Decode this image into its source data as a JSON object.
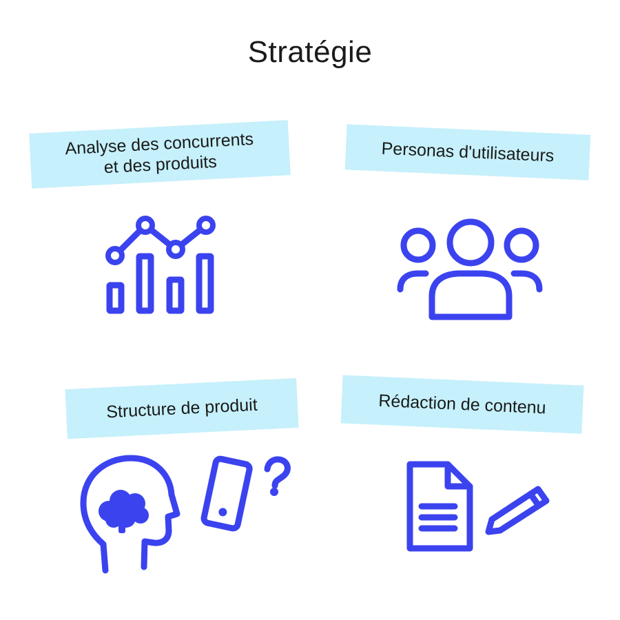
{
  "title": "Stratégie",
  "cards": [
    {
      "label": "Analyse des concurrents\net des produits",
      "icon": "bar-line-chart-icon"
    },
    {
      "label": "Personas d'utilisateurs",
      "icon": "user-group-icon"
    },
    {
      "label": "Structure de produit",
      "icon": "head-brain-phone-icon"
    },
    {
      "label": "Rédaction de contenu",
      "icon": "document-pencil-icon"
    }
  ],
  "colors": {
    "accent": "#3b43ef",
    "label_bg": "#c6f0fb",
    "text": "#1a1a1a"
  }
}
